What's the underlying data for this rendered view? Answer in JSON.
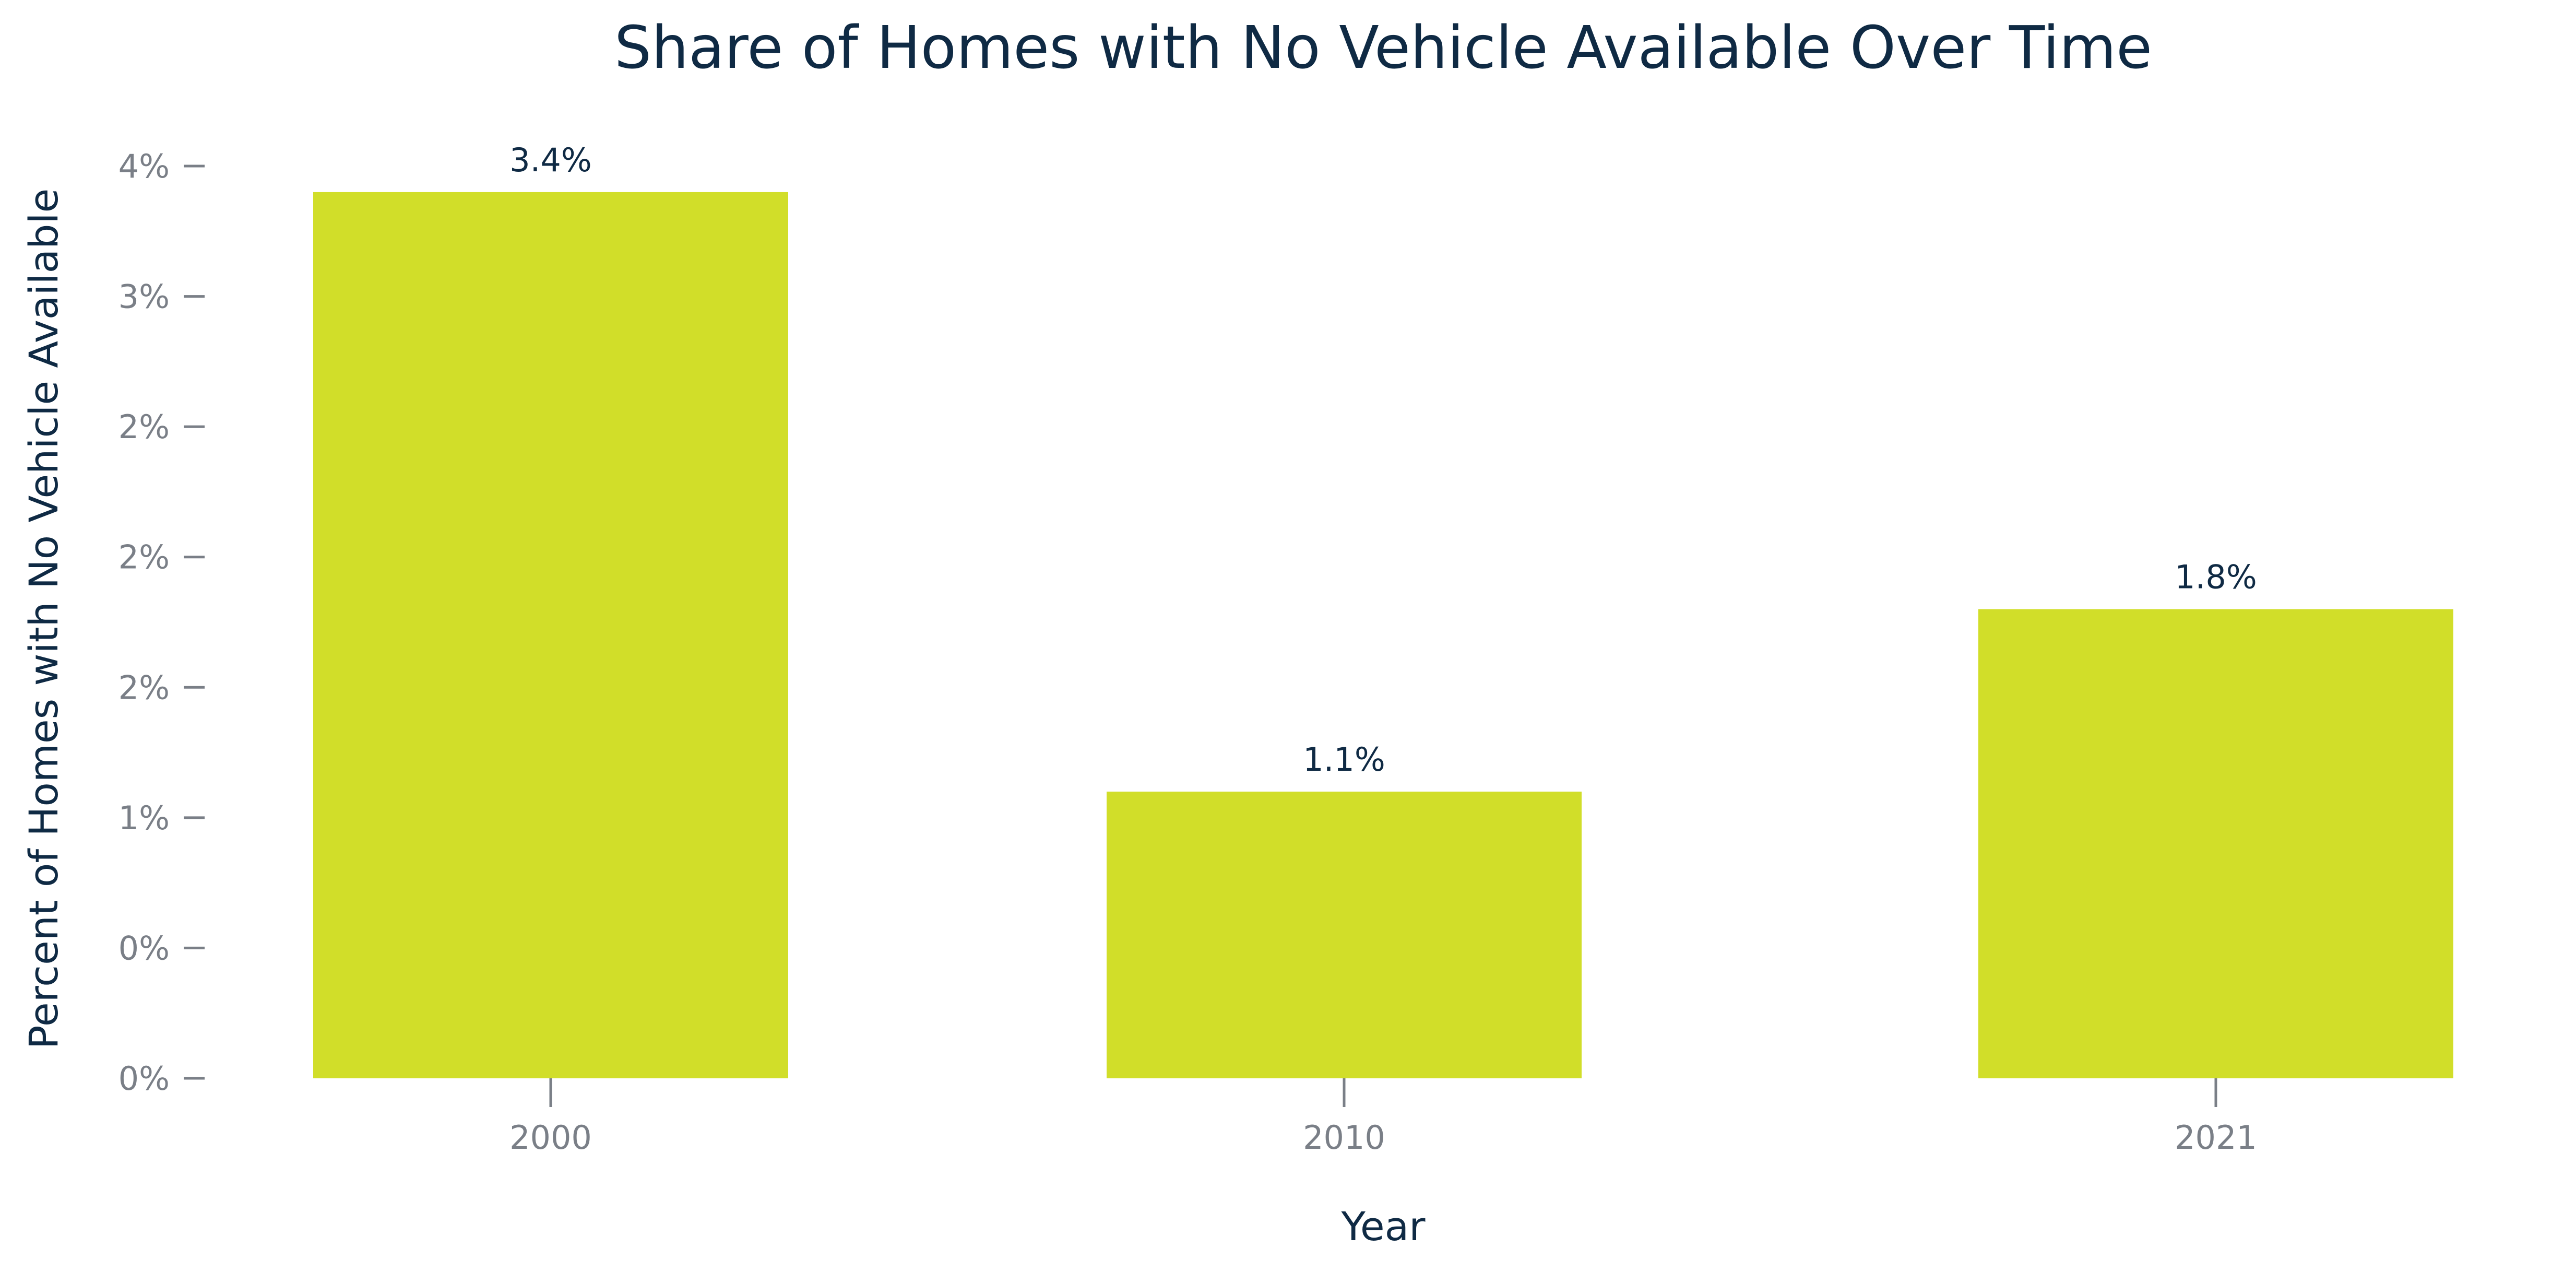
{
  "chart_data": {
    "type": "bar",
    "title": "Share of Homes with No Vehicle Available Over Time",
    "xlabel": "Year",
    "ylabel": "Percent of Homes with No Vehicle Available",
    "categories": [
      "2000",
      "2010",
      "2021"
    ],
    "values": [
      3.4,
      1.1,
      1.8
    ],
    "data_labels": [
      "3.4%",
      "1.1%",
      "1.8%"
    ],
    "y_ticks": [
      {
        "value": 0.0,
        "label": "0%"
      },
      {
        "value": 0.5,
        "label": "0%"
      },
      {
        "value": 1.0,
        "label": "1%"
      },
      {
        "value": 1.5,
        "label": "2%"
      },
      {
        "value": 2.0,
        "label": "2%"
      },
      {
        "value": 2.5,
        "label": "2%"
      },
      {
        "value": 3.0,
        "label": "3%"
      },
      {
        "value": 3.5,
        "label": "4%"
      }
    ],
    "ylim": [
      0,
      3.5
    ],
    "bar_color": "#d1de29",
    "grid": false,
    "legend": "none"
  }
}
